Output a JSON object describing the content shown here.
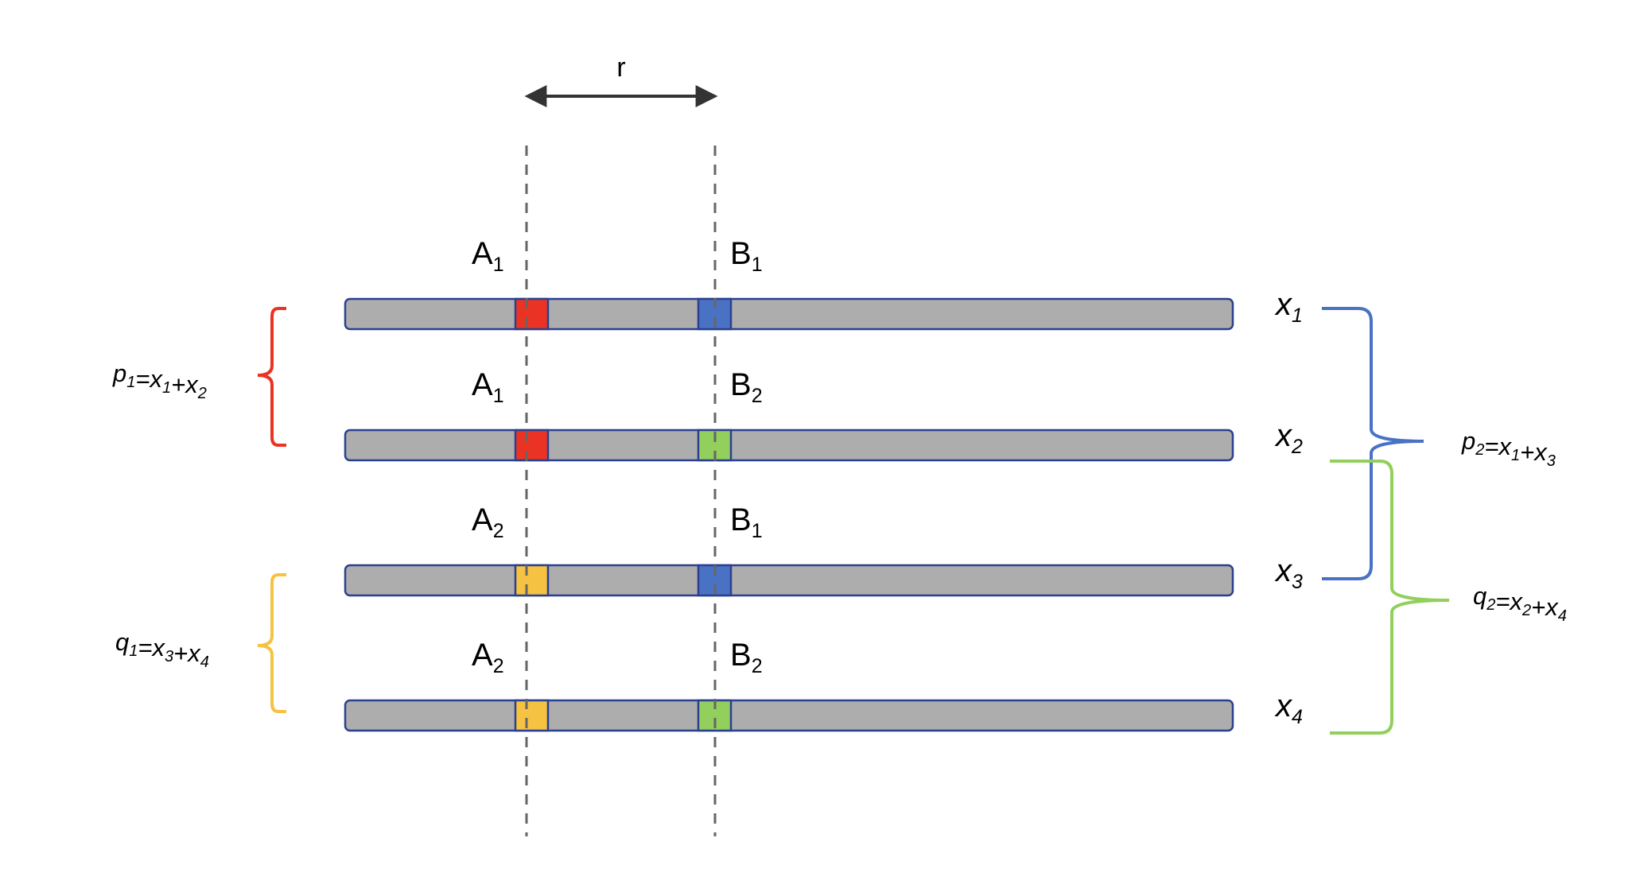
{
  "distance_label": "r",
  "colors": {
    "bar_fill": "#adadad",
    "bar_stroke": "#2b3f8f",
    "A1": "#ea3323",
    "A2": "#f5c242",
    "B1": "#4a72c4",
    "B2": "#92cf5c",
    "dash": "#666666",
    "arrow": "#333333",
    "brace_red": "#ea3323",
    "brace_yellow": "#f5c242",
    "brace_blue": "#4a72c4",
    "brace_green": "#92cf5c"
  },
  "chromosomes": [
    {
      "locus_a": {
        "base": "A",
        "index": "1",
        "allele": "A1"
      },
      "locus_b": {
        "base": "B",
        "index": "1",
        "allele": "B1"
      },
      "freq": {
        "var": "x",
        "index": "1"
      }
    },
    {
      "locus_a": {
        "base": "A",
        "index": "1",
        "allele": "A1"
      },
      "locus_b": {
        "base": "B",
        "index": "2",
        "allele": "B2"
      },
      "freq": {
        "var": "x",
        "index": "2"
      }
    },
    {
      "locus_a": {
        "base": "A",
        "index": "2",
        "allele": "A2"
      },
      "locus_b": {
        "base": "B",
        "index": "1",
        "allele": "B1"
      },
      "freq": {
        "var": "x",
        "index": "3"
      }
    },
    {
      "locus_a": {
        "base": "A",
        "index": "2",
        "allele": "A2"
      },
      "locus_b": {
        "base": "B",
        "index": "2",
        "allele": "B2"
      },
      "freq": {
        "var": "x",
        "index": "4"
      }
    }
  ],
  "equations": {
    "p1": {
      "parts": [
        [
          "p",
          "1"
        ],
        [
          "=",
          ""
        ],
        [
          "x",
          "1"
        ],
        [
          "+",
          ""
        ],
        [
          "x",
          "2"
        ]
      ],
      "color_key": "brace_red"
    },
    "q1": {
      "parts": [
        [
          "q",
          "1"
        ],
        [
          "=",
          ""
        ],
        [
          "x",
          "3"
        ],
        [
          "+",
          ""
        ],
        [
          "x",
          "4"
        ]
      ],
      "color_key": "brace_yellow"
    },
    "p2": {
      "parts": [
        [
          "p",
          "2"
        ],
        [
          "=",
          ""
        ],
        [
          "x",
          "1"
        ],
        [
          "+",
          ""
        ],
        [
          "x",
          "3"
        ]
      ],
      "color_key": "brace_blue"
    },
    "q2": {
      "parts": [
        [
          "q",
          "2"
        ],
        [
          "=",
          ""
        ],
        [
          "x",
          "2"
        ],
        [
          "+",
          ""
        ],
        [
          "x",
          "4"
        ]
      ],
      "color_key": "brace_green"
    }
  }
}
